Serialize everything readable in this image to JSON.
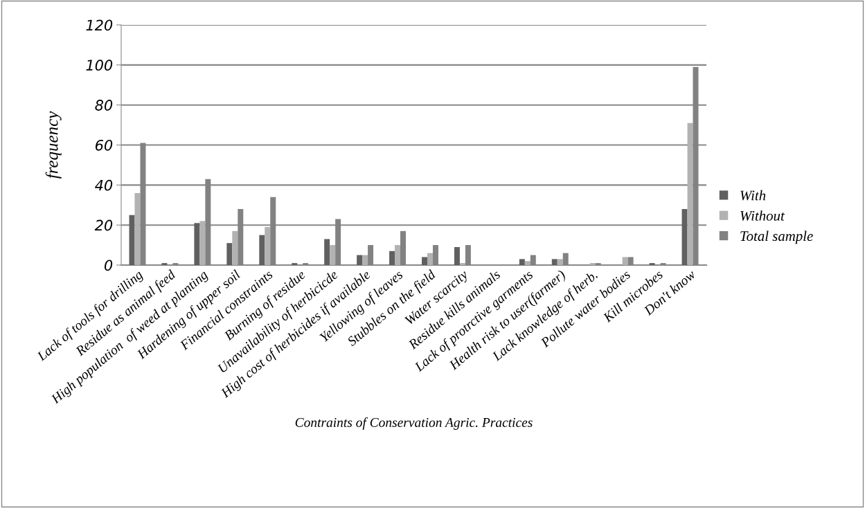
{
  "chart_data": {
    "type": "bar",
    "xlabel": "Contraints of Conservation Agric. Practices",
    "ylabel": "frequency",
    "categories": [
      "Lack of tools for drilling",
      "Residue as animal feed",
      "High population  of weed at planting",
      "Hardening of upper soil",
      "Financial constraints",
      "Burning of residue",
      "Unavailability of herbicicde",
      "High cost of herbicides if available",
      "Yellowing of leaves",
      "Stubbles on the field",
      "Water scarcity",
      "Residue kills animals",
      "Lack of protrctive garments",
      "Health risk to user(farmer)",
      "Lack knowledge of herb.",
      "Pollute water bodies",
      "Kill microbes",
      "Don't know"
    ],
    "series": [
      {
        "name": "With",
        "color": "#606060",
        "values": [
          25,
          1,
          21,
          11,
          15,
          1,
          13,
          5,
          7,
          4,
          9,
          0,
          3,
          3,
          0,
          0,
          1,
          28
        ]
      },
      {
        "name": "Without",
        "color": "#b2b2b2",
        "values": [
          36,
          0,
          22,
          17,
          19,
          0,
          10,
          5,
          10,
          6,
          1,
          0,
          2,
          3,
          1,
          4,
          0,
          71
        ]
      },
      {
        "name": "Total sample",
        "color": "#828282",
        "values": [
          61,
          1,
          43,
          28,
          34,
          1,
          23,
          10,
          17,
          10,
          10,
          0,
          5,
          6,
          1,
          4,
          1,
          99
        ]
      }
    ],
    "ylim": [
      0,
      120
    ],
    "yticks": [
      0,
      20,
      40,
      60,
      80,
      100,
      120
    ],
    "grid": "y",
    "legend": "right"
  }
}
